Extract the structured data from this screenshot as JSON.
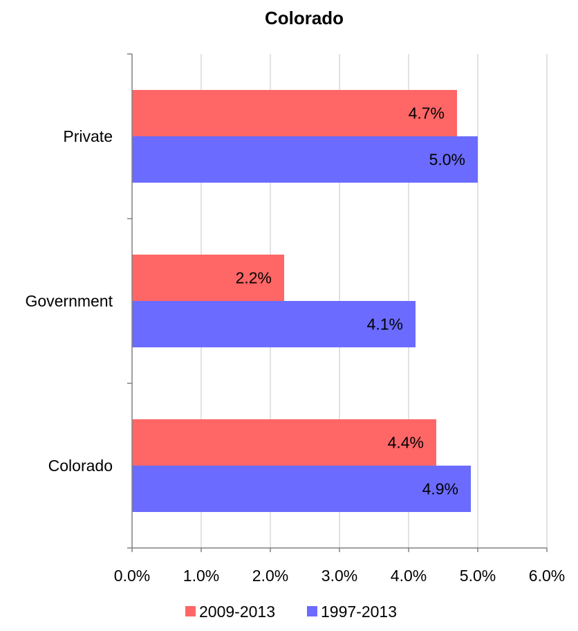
{
  "chart_data": {
    "type": "bar",
    "orientation": "horizontal",
    "title": "Colorado",
    "xlabel": "",
    "ylabel": "",
    "categories": [
      "Private",
      "Government",
      "Colorado"
    ],
    "series": [
      {
        "name": "2009-2013",
        "color": "#ff6666",
        "values": [
          4.7,
          2.2,
          4.4
        ],
        "labels": [
          "4.7%",
          "2.2%",
          "4.4%"
        ]
      },
      {
        "name": "1997-2013",
        "color": "#6b6bff",
        "values": [
          5.0,
          4.1,
          4.9
        ],
        "labels": [
          "5.0%",
          "4.1%",
          "4.9%"
        ]
      }
    ],
    "xlim": [
      0,
      6
    ],
    "xticks": [
      0,
      1,
      2,
      3,
      4,
      5,
      6
    ],
    "xtick_labels": [
      "0.0%",
      "1.0%",
      "2.0%",
      "3.0%",
      "4.0%",
      "5.0%",
      "6.0%"
    ],
    "grid": "vertical",
    "legend_position": "bottom"
  }
}
